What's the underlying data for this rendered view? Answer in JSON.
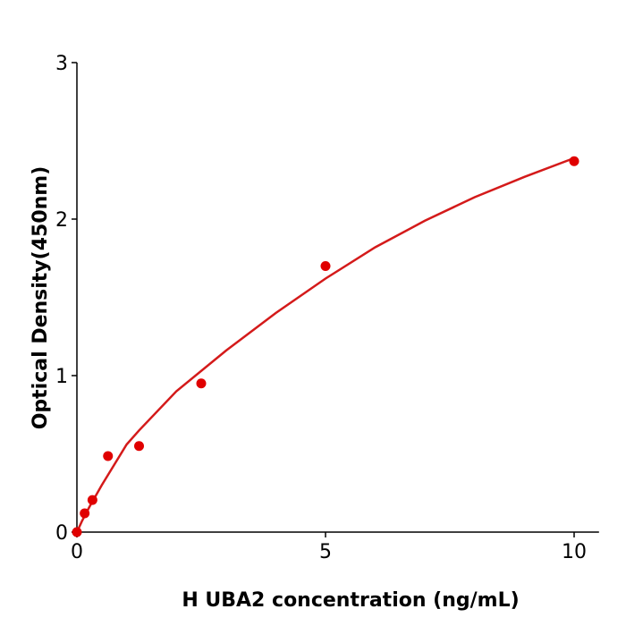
{
  "chart_data": {
    "type": "scatter",
    "xlabel": "H  UBA2 concentration (ng/mL)",
    "ylabel": "Optical Density(450nm)",
    "xlim": [
      0,
      10.5
    ],
    "ylim": [
      0,
      3
    ],
    "xticks": [
      "0",
      "5",
      "10"
    ],
    "yticks": [
      "0",
      "1",
      "2",
      "3"
    ],
    "grid": false,
    "points": {
      "x": [
        0,
        0.156,
        0.3125,
        0.625,
        1.25,
        2.5,
        5,
        10
      ],
      "y": [
        0.0,
        0.12,
        0.205,
        0.486,
        0.55,
        0.95,
        1.7,
        2.37
      ]
    },
    "fit_curve": {
      "x": [
        0,
        0.1,
        0.25,
        0.5,
        1,
        1.25,
        2,
        3,
        4,
        5,
        6,
        7,
        8,
        9,
        10
      ],
      "y": [
        0,
        0.07,
        0.16,
        0.3,
        0.56,
        0.65,
        0.9,
        1.16,
        1.4,
        1.62,
        1.82,
        1.99,
        2.14,
        2.27,
        2.39
      ]
    },
    "colors": {
      "points": "#e00000",
      "curve": "#d41a1a"
    }
  }
}
